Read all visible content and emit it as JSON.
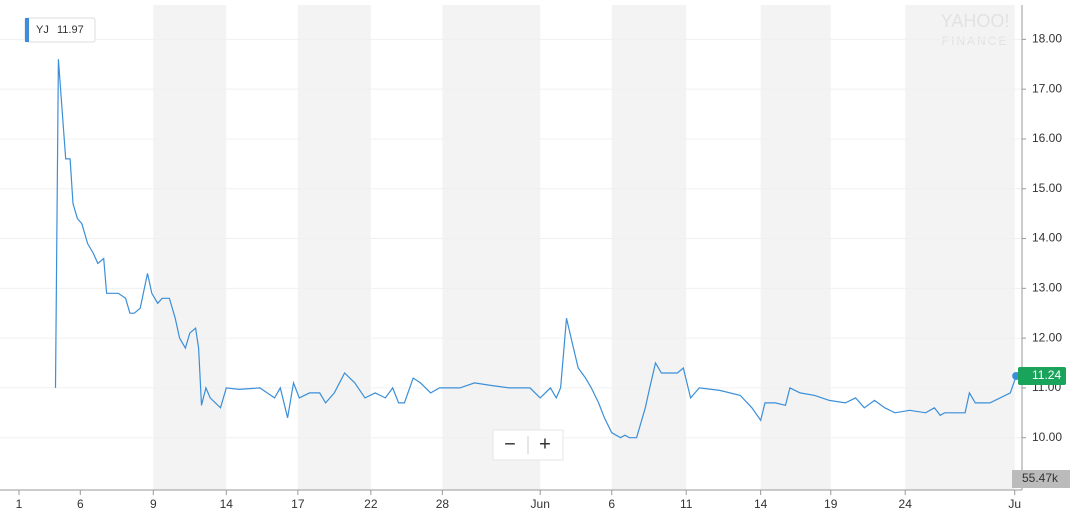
{
  "chart_data": {
    "type": "line",
    "x": [
      2.5,
      2.7,
      2.9,
      3.2,
      3.5,
      3.7,
      4.0,
      4.3,
      4.7,
      5.1,
      5.4,
      5.8,
      6.0,
      6.2,
      6.8,
      7.3,
      7.6,
      7.9,
      8.3,
      8.8,
      9.1,
      9.5,
      9.8,
      10.3,
      10.7,
      11.0,
      11.4,
      11.7,
      12.1,
      12.3,
      12.5,
      12.8,
      13.1,
      13.8,
      14.2,
      15.1,
      16.5,
      17.5,
      17.9,
      18.4,
      18.8,
      19.2,
      19.9,
      20.6,
      21.0,
      21.6,
      22.3,
      23.0,
      23.7,
      24.4,
      25.1,
      25.6,
      26.0,
      26.4,
      27.0,
      27.5,
      28.2,
      28.8,
      30.2,
      31.2,
      32.3,
      33.6,
      35.0,
      35.7,
      36.4,
      36.8,
      37.1,
      37.5,
      37.9,
      38.3,
      38.8,
      39.2,
      39.7,
      40.1,
      40.6,
      41.2,
      41.5,
      41.8,
      42.3,
      42.9,
      43.2,
      43.6,
      44.0,
      44.6,
      45.1,
      45.5,
      46.0,
      46.6,
      48.0,
      49.4,
      50.2,
      50.8,
      51.1,
      51.8,
      52.5,
      52.8,
      53.5,
      54.5,
      55.5,
      56.6,
      57.3,
      57.9,
      58.6,
      59.3,
      60.0,
      61.0,
      62.1,
      62.7,
      63.1,
      63.4,
      64.8,
      65.1,
      65.5,
      66.5,
      67.2,
      67.9,
      68.3
    ],
    "series": [
      {
        "name": "YJ",
        "color": "#3b8fd8",
        "values": [
          11.0,
          17.6,
          16.8,
          15.6,
          15.6,
          14.7,
          14.4,
          14.3,
          13.9,
          13.7,
          13.5,
          13.6,
          12.9,
          12.9,
          12.9,
          12.8,
          12.5,
          12.5,
          12.6,
          13.3,
          12.9,
          12.7,
          12.8,
          12.8,
          12.4,
          12.0,
          11.8,
          12.1,
          12.2,
          11.8,
          10.65,
          11.0,
          10.8,
          10.6,
          11.0,
          10.97,
          11.0,
          10.8,
          11.0,
          10.4,
          11.1,
          10.8,
          10.9,
          10.9,
          10.7,
          10.9,
          11.3,
          11.1,
          10.8,
          10.9,
          10.8,
          11.0,
          10.7,
          10.7,
          11.2,
          11.1,
          10.9,
          11.0,
          11.0,
          11.1,
          11.05,
          11.0,
          11.0,
          10.8,
          11.0,
          10.8,
          11.0,
          12.4,
          11.9,
          11.4,
          11.2,
          11.0,
          10.7,
          10.4,
          10.1,
          10.0,
          10.05,
          10.0,
          10.0,
          10.6,
          11.0,
          11.5,
          11.3,
          11.3,
          11.3,
          11.4,
          10.8,
          11.0,
          10.95,
          10.85,
          10.6,
          10.35,
          10.7,
          10.7,
          10.65,
          11.0,
          10.9,
          10.85,
          10.75,
          10.7,
          10.8,
          10.6,
          10.75,
          10.6,
          10.5,
          10.55,
          10.5,
          10.6,
          10.45,
          10.5,
          10.5,
          10.9,
          10.7,
          10.7,
          10.8,
          10.9,
          11.24
        ]
      }
    ],
    "xlim": [
      -1.3,
      68.7
    ],
    "xticks": [
      {
        "value": 0,
        "label": "1"
      },
      {
        "value": 4.2,
        "label": "6"
      },
      {
        "value": 9.2,
        "label": "9"
      },
      {
        "value": 14.2,
        "label": "14"
      },
      {
        "value": 19.1,
        "label": "17"
      },
      {
        "value": 24.1,
        "label": "22"
      },
      {
        "value": 29,
        "label": "28"
      },
      {
        "value": 35.7,
        "label": "Jun"
      },
      {
        "value": 40.6,
        "label": "6"
      },
      {
        "value": 45.7,
        "label": "11"
      },
      {
        "value": 50.8,
        "label": "14"
      },
      {
        "value": 55.6,
        "label": "19"
      },
      {
        "value": 60.7,
        "label": "24"
      },
      {
        "value": 68.2,
        "label": "Ju"
      }
    ],
    "ylim": [
      8.95,
      18.69
    ],
    "yticks": [
      {
        "value": 10,
        "label": "10.00"
      },
      {
        "value": 11,
        "label": "11.00"
      },
      {
        "value": 12,
        "label": "12.00"
      },
      {
        "value": 13,
        "label": "13.00"
      },
      {
        "value": 14,
        "label": "14.00"
      },
      {
        "value": 15,
        "label": "15.00"
      },
      {
        "value": 16,
        "label": "16.00"
      },
      {
        "value": 17,
        "label": "17.00"
      },
      {
        "value": 18,
        "label": "18.00"
      }
    ],
    "grid": true,
    "legend_value": "11.97",
    "last_value_label": "11.24",
    "last_value_color": "#1aa35a",
    "volume_label": "55.47k",
    "watermark": [
      "YAHOO!",
      "FINANCE"
    ],
    "zoom_controls": [
      "−",
      "+"
    ]
  }
}
